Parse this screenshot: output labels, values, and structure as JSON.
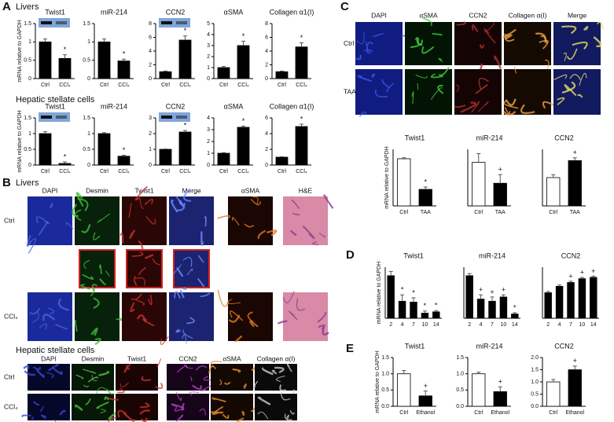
{
  "panel_letters": [
    "A",
    "B",
    "C",
    "D",
    "E"
  ],
  "section_titles": [
    "Livers",
    "Hepatic stellate cells",
    "Livers",
    "Hepatic stellate cells"
  ],
  "image_grids": [
    {
      "columns": [
        "DAPI",
        "Desmin",
        "Twist1",
        "Merge",
        "αSMA",
        "H&E"
      ],
      "rows": [
        "Ctrl",
        "CCl₄"
      ],
      "colors": [
        "#1a2a9c",
        "#07210a",
        "#2a0606",
        "#1c2370",
        "#1a0602",
        "#d88aa6"
      ],
      "accents": [
        "#4a63e0",
        "#3fbf3a",
        "#c8322a",
        "#6a8cff",
        "#e07a20",
        "#8a3a90"
      ]
    },
    {
      "columns": [
        "DAPI",
        "Desmin",
        "Twist1",
        "CCN2",
        "αSMA",
        "Collagen α(I)"
      ],
      "rows": [
        "Ctrl",
        "CCl₄"
      ],
      "colors": [
        "#06082a",
        "#061806",
        "#1a0404",
        "#16041a",
        "#140802",
        "#0a0a0a"
      ],
      "accents": [
        "#3548d8",
        "#4cbf3c",
        "#c8302c",
        "#b040c0",
        "#e08a30",
        "#c8c8c8"
      ]
    },
    {
      "columns": [
        "DAPI",
        "αSMA",
        "CCN2",
        "Collagen α(I)",
        "Merge"
      ],
      "rows": [
        "Ctrl",
        "TAA"
      ],
      "colors": [
        "#101c80",
        "#041404",
        "#140404",
        "#140a02",
        "#121a60"
      ],
      "accents": [
        "#3a55e0",
        "#3ccf40",
        "#b03030",
        "#f0a040",
        "#e8e060"
      ]
    }
  ],
  "chart_data": [
    {
      "type": "bar",
      "title": "Twist1",
      "ylabel": "mRNA relative to GAPDH",
      "categories": [
        "Ctrl",
        "CCl₄"
      ],
      "values": [
        1,
        0.55
      ],
      "errors": [
        0.08,
        0.1
      ],
      "colors": [
        "#000000",
        "#000000"
      ],
      "ylim": [
        0,
        1.5
      ],
      "yticks": [
        0,
        0.5,
        1,
        1.5
      ],
      "annotations": [
        {
          "index": 1,
          "text": "*"
        }
      ],
      "blot": true
    },
    {
      "type": "bar",
      "title": "miR-214",
      "categories": [
        "Ctrl",
        "CCl₄"
      ],
      "values": [
        1,
        0.48
      ],
      "errors": [
        0.08,
        0.05
      ],
      "colors": [
        "#000000",
        "#000000"
      ],
      "ylim": [
        0,
        1.5
      ],
      "yticks": [
        0,
        0.5,
        1,
        1.5
      ],
      "annotations": [
        {
          "index": 1,
          "text": "*"
        }
      ]
    },
    {
      "type": "bar",
      "title": "CCN2",
      "categories": [
        "Ctrl",
        "CCl₄"
      ],
      "values": [
        1,
        5.6
      ],
      "errors": [
        0.1,
        0.6
      ],
      "colors": [
        "#000000",
        "#000000"
      ],
      "ylim": [
        0,
        8
      ],
      "yticks": [
        0,
        2,
        4,
        6,
        8
      ],
      "annotations": [
        {
          "index": 1,
          "text": "*"
        }
      ],
      "blot": true
    },
    {
      "type": "bar",
      "title": "αSMA",
      "categories": [
        "Ctrl",
        "CCl₄"
      ],
      "values": [
        1,
        3
      ],
      "errors": [
        0.1,
        0.4
      ],
      "colors": [
        "#000000",
        "#000000"
      ],
      "ylim": [
        0,
        5
      ],
      "yticks": [
        0,
        1,
        2,
        3,
        4,
        5
      ],
      "annotations": [
        {
          "index": 1,
          "text": "*"
        }
      ]
    },
    {
      "type": "bar",
      "title": "Collagen α1(I)",
      "categories": [
        "Ctrl",
        "CCl₄"
      ],
      "values": [
        1,
        4.6
      ],
      "errors": [
        0.1,
        0.6
      ],
      "colors": [
        "#000000",
        "#000000"
      ],
      "ylim": [
        0,
        8
      ],
      "yticks": [
        0,
        2,
        4,
        6,
        8
      ],
      "annotations": [
        {
          "index": 1,
          "text": "*"
        }
      ]
    },
    {
      "type": "bar",
      "title": "Twist1",
      "ylabel": "mRNA relative to GAPDH",
      "categories": [
        "Ctrl",
        "CCl₄"
      ],
      "values": [
        1,
        0.05
      ],
      "errors": [
        0.06,
        0.05
      ],
      "colors": [
        "#000000",
        "#000000"
      ],
      "ylim": [
        0,
        1.5
      ],
      "yticks": [
        0,
        0.5,
        1,
        1.5
      ],
      "annotations": [
        {
          "index": 1,
          "text": "*"
        }
      ],
      "blot": true
    },
    {
      "type": "bar",
      "title": "miR-214",
      "categories": [
        "Ctrl",
        "CCl₄"
      ],
      "values": [
        1,
        0.28
      ],
      "errors": [
        0.03,
        0.03
      ],
      "colors": [
        "#000000",
        "#000000"
      ],
      "ylim": [
        0,
        1.5
      ],
      "yticks": [
        0,
        0.5,
        1,
        1.5
      ],
      "annotations": [
        {
          "index": 1,
          "text": "*"
        }
      ]
    },
    {
      "type": "bar",
      "title": "CCN2",
      "categories": [
        "Ctrl",
        "CCl₄"
      ],
      "values": [
        1,
        2.1
      ],
      "errors": [
        0.02,
        0.1
      ],
      "colors": [
        "#000000",
        "#000000"
      ],
      "ylim": [
        0,
        3
      ],
      "yticks": [
        0,
        1,
        2,
        3
      ],
      "annotations": [
        {
          "index": 1,
          "text": "*"
        }
      ],
      "blot": true
    },
    {
      "type": "bar",
      "title": "αSMA",
      "categories": [
        "Ctrl",
        "CCl₄"
      ],
      "values": [
        1,
        3.2
      ],
      "errors": [
        0.05,
        0.1
      ],
      "colors": [
        "#000000",
        "#000000"
      ],
      "ylim": [
        0,
        4
      ],
      "yticks": [
        0,
        1,
        2,
        3,
        4
      ],
      "annotations": [
        {
          "index": 1,
          "text": "*"
        }
      ]
    },
    {
      "type": "bar",
      "title": "Collagen α1(I)",
      "categories": [
        "Ctrl",
        "CCl₄"
      ],
      "values": [
        1,
        4.9
      ],
      "errors": [
        0.05,
        0.3
      ],
      "colors": [
        "#000000",
        "#000000"
      ],
      "ylim": [
        0,
        6
      ],
      "yticks": [
        0,
        2,
        4,
        6
      ],
      "annotations": [
        {
          "index": 1,
          "text": "*"
        }
      ]
    },
    {
      "type": "bar",
      "title": "Twist1",
      "ylabel": "mRNA relative to GAPDH",
      "categories": [
        "Ctrl",
        "TAA"
      ],
      "values": [
        1,
        0.35
      ],
      "errors": [
        0.02,
        0.05
      ],
      "colors": [
        "#ffffff",
        "#000000"
      ],
      "ylim": [
        0,
        1.2
      ],
      "annotations": [
        {
          "index": 1,
          "text": "*"
        }
      ]
    },
    {
      "type": "bar",
      "title": "miR-214",
      "categories": [
        "Ctrl",
        "TAA"
      ],
      "values": [
        1,
        0.52
      ],
      "errors": [
        0.2,
        0.2
      ],
      "colors": [
        "#ffffff",
        "#000000"
      ],
      "ylim": [
        0,
        1.3
      ],
      "annotations": [
        {
          "index": 1,
          "text": "+"
        }
      ]
    },
    {
      "type": "bar",
      "title": "CCN2",
      "categories": [
        "Ctrl",
        "TAA"
      ],
      "values": [
        1,
        1.6
      ],
      "errors": [
        0.1,
        0.1
      ],
      "colors": [
        "#ffffff",
        "#000000"
      ],
      "ylim": [
        0,
        2
      ],
      "annotations": [
        {
          "index": 1,
          "text": "+"
        }
      ]
    },
    {
      "type": "bar",
      "title": "Twist1",
      "ylabel": "mRNA relative to GAPDH",
      "categories": [
        2,
        4,
        7,
        10,
        14
      ],
      "values": [
        1,
        0.4,
        0.38,
        0.12,
        0.15
      ],
      "errors": [
        0.1,
        0.15,
        0.1,
        0.05,
        0.03
      ],
      "colors": [
        "#000000",
        "#000000",
        "#000000",
        "#000000",
        "#000000"
      ],
      "ylim": [
        0,
        1.2
      ],
      "annotations": [
        {
          "index": 1,
          "text": "*"
        },
        {
          "index": 2,
          "text": "*"
        },
        {
          "index": 3,
          "text": "*"
        },
        {
          "index": 4,
          "text": "*"
        }
      ]
    },
    {
      "type": "bar",
      "title": "miR-214",
      "categories": [
        2,
        4,
        7,
        10,
        14
      ],
      "values": [
        1,
        0.45,
        0.4,
        0.5,
        0.1
      ],
      "errors": [
        0.05,
        0.1,
        0.1,
        0.05,
        0.03
      ],
      "colors": [
        "#000000",
        "#000000",
        "#000000",
        "#000000",
        "#000000"
      ],
      "ylim": [
        0,
        1.2
      ],
      "annotations": [
        {
          "index": 1,
          "text": "+"
        },
        {
          "index": 2,
          "text": "+"
        },
        {
          "index": 3,
          "text": "+"
        },
        {
          "index": 4,
          "text": "*"
        }
      ]
    },
    {
      "type": "bar",
      "title": "CCN2",
      "categories": [
        2,
        4,
        7,
        10,
        14
      ],
      "values": [
        1,
        1.25,
        1.4,
        1.55,
        1.6
      ],
      "errors": [
        0.05,
        0.05,
        0.05,
        0.05,
        0.05
      ],
      "colors": [
        "#000000",
        "#000000",
        "#000000",
        "#000000",
        "#000000"
      ],
      "ylim": [
        0,
        2
      ],
      "annotations": [
        {
          "index": 2,
          "text": "+"
        },
        {
          "index": 3,
          "text": "+"
        },
        {
          "index": 4,
          "text": "+"
        }
      ]
    },
    {
      "type": "bar",
      "title": "Twist1",
      "ylabel": "mRNA relative to GAPDH",
      "categories": [
        "Ctrl",
        "Ethanol"
      ],
      "values": [
        1,
        0.32
      ],
      "errors": [
        0.1,
        0.15
      ],
      "colors": [
        "#ffffff",
        "#000000"
      ],
      "ylim": [
        0,
        1.5
      ],
      "yticks": [
        {
          "value": 0,
          "label": "0.0"
        },
        0.5,
        {
          "value": 1,
          "label": "1.0"
        },
        1.5
      ],
      "annotations": [
        {
          "index": 1,
          "text": "+"
        }
      ]
    },
    {
      "type": "bar",
      "title": "miR-214",
      "categories": [
        "Ctrl",
        "Ethanol"
      ],
      "values": [
        1,
        0.45
      ],
      "errors": [
        0.05,
        0.15
      ],
      "colors": [
        "#ffffff",
        "#000000"
      ],
      "ylim": [
        0,
        1.5
      ],
      "yticks": [
        {
          "value": 0,
          "label": "0.0"
        },
        0.5,
        {
          "value": 1,
          "label": "1.0"
        },
        1.5
      ],
      "annotations": [
        {
          "index": 1,
          "text": "+"
        }
      ]
    },
    {
      "type": "bar",
      "title": "CCN2",
      "categories": [
        "Ctrl",
        "Ethanol"
      ],
      "values": [
        1,
        1.5
      ],
      "errors": [
        0.1,
        0.15
      ],
      "colors": [
        "#ffffff",
        "#000000"
      ],
      "ylim": [
        0,
        2
      ],
      "yticks": [
        {
          "value": 0,
          "label": "0.0"
        },
        0.5,
        {
          "value": 1,
          "label": "1.0"
        },
        1.5,
        {
          "value": 2,
          "label": "2.0"
        }
      ],
      "annotations": [
        {
          "index": 1,
          "text": "+"
        }
      ]
    }
  ]
}
